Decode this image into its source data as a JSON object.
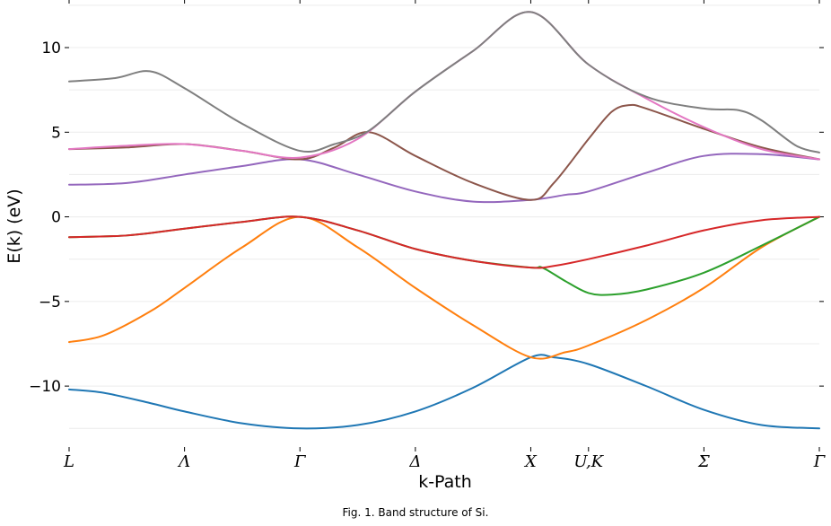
{
  "chart_data": {
    "type": "line",
    "xlabel": "k-Path",
    "ylabel": "E(k) (eV)",
    "ylim": [
      -13.6,
      12.6
    ],
    "grid": true,
    "xlim": [
      0,
      6.5
    ],
    "x_ticks": [
      {
        "pos": 0.0,
        "label": "L"
      },
      {
        "pos": 1.0,
        "label": "Λ"
      },
      {
        "pos": 2.0,
        "label": "Γ"
      },
      {
        "pos": 3.0,
        "label": "Δ"
      },
      {
        "pos": 4.0,
        "label": "X"
      },
      {
        "pos": 4.5,
        "label": "U,K"
      },
      {
        "pos": 5.5,
        "label": "Σ"
      },
      {
        "pos": 6.5,
        "label": "Γ"
      }
    ],
    "y_ticks": [
      {
        "value": 10,
        "label": "10"
      },
      {
        "value": 5,
        "label": "5"
      },
      {
        "value": 0,
        "label": "0"
      },
      {
        "value": -5,
        "label": "−5"
      },
      {
        "value": -10,
        "label": "−10"
      }
    ],
    "series": [
      {
        "color": "#1f77b4",
        "points": [
          [
            0,
            -10.2
          ],
          [
            0.3,
            -10.4
          ],
          [
            0.7,
            -11.0
          ],
          [
            1.0,
            -11.5
          ],
          [
            1.5,
            -12.2
          ],
          [
            2.0,
            -12.5
          ],
          [
            2.5,
            -12.3
          ],
          [
            3.0,
            -11.5
          ],
          [
            3.5,
            -10.1
          ],
          [
            4.0,
            -8.3
          ],
          [
            4.2,
            -8.3
          ],
          [
            4.5,
            -8.7
          ],
          [
            5.0,
            -10.0
          ],
          [
            5.5,
            -11.4
          ],
          [
            6.0,
            -12.3
          ],
          [
            6.5,
            -12.5
          ]
        ]
      },
      {
        "color": "#ff7f0e",
        "points": [
          [
            0,
            -7.4
          ],
          [
            0.3,
            -7.0
          ],
          [
            0.7,
            -5.6
          ],
          [
            1.0,
            -4.2
          ],
          [
            1.5,
            -1.8
          ],
          [
            2.0,
            0.0
          ],
          [
            2.5,
            -1.8
          ],
          [
            3.0,
            -4.2
          ],
          [
            3.5,
            -6.4
          ],
          [
            4.0,
            -8.3
          ],
          [
            4.3,
            -8.0
          ],
          [
            4.5,
            -7.6
          ],
          [
            5.0,
            -6.1
          ],
          [
            5.5,
            -4.2
          ],
          [
            6.0,
            -1.8
          ],
          [
            6.5,
            0.0
          ]
        ]
      },
      {
        "color": "#2ca02c",
        "points": [
          [
            0,
            -1.2
          ],
          [
            0.5,
            -1.1
          ],
          [
            1.0,
            -0.7
          ],
          [
            1.5,
            -0.3
          ],
          [
            2.0,
            0.0
          ],
          [
            2.5,
            -0.8
          ],
          [
            3.0,
            -1.9
          ],
          [
            3.5,
            -2.6
          ],
          [
            4.0,
            -3.0
          ],
          [
            4.1,
            -3.0
          ],
          [
            4.3,
            -3.8
          ],
          [
            4.5,
            -4.5
          ],
          [
            4.7,
            -4.6
          ],
          [
            5.0,
            -4.3
          ],
          [
            5.5,
            -3.3
          ],
          [
            6.0,
            -1.7
          ],
          [
            6.5,
            0.0
          ]
        ]
      },
      {
        "color": "#d62728",
        "points": [
          [
            0,
            -1.2
          ],
          [
            0.5,
            -1.1
          ],
          [
            1.0,
            -0.7
          ],
          [
            1.5,
            -0.3
          ],
          [
            2.0,
            0.0
          ],
          [
            2.5,
            -0.8
          ],
          [
            3.0,
            -1.9
          ],
          [
            3.5,
            -2.6
          ],
          [
            4.0,
            -3.0
          ],
          [
            4.2,
            -2.9
          ],
          [
            4.5,
            -2.5
          ],
          [
            5.0,
            -1.7
          ],
          [
            5.5,
            -0.8
          ],
          [
            6.0,
            -0.2
          ],
          [
            6.5,
            0.0
          ]
        ]
      },
      {
        "color": "#9467bd",
        "points": [
          [
            0,
            1.9
          ],
          [
            0.5,
            2.0
          ],
          [
            1.0,
            2.5
          ],
          [
            1.5,
            3.0
          ],
          [
            2.0,
            3.4
          ],
          [
            2.5,
            2.5
          ],
          [
            3.0,
            1.5
          ],
          [
            3.5,
            0.9
          ],
          [
            4.0,
            1.0
          ],
          [
            4.3,
            1.3
          ],
          [
            4.5,
            1.5
          ],
          [
            5.0,
            2.6
          ],
          [
            5.5,
            3.6
          ],
          [
            6.0,
            3.7
          ],
          [
            6.5,
            3.4
          ]
        ]
      },
      {
        "color": "#8c564b",
        "points": [
          [
            0,
            4.0
          ],
          [
            0.5,
            4.1
          ],
          [
            1.0,
            4.3
          ],
          [
            1.5,
            3.9
          ],
          [
            2.0,
            3.4
          ],
          [
            2.3,
            4.1
          ],
          [
            2.6,
            5.0
          ],
          [
            3.0,
            3.6
          ],
          [
            3.5,
            2.0
          ],
          [
            4.0,
            1.0
          ],
          [
            4.2,
            2.0
          ],
          [
            4.5,
            4.6
          ],
          [
            4.7,
            6.2
          ],
          [
            4.85,
            6.6
          ],
          [
            5.0,
            6.4
          ],
          [
            5.5,
            5.2
          ],
          [
            6.0,
            4.1
          ],
          [
            6.5,
            3.4
          ]
        ]
      },
      {
        "color": "#e377c2",
        "points": [
          [
            0,
            4.0
          ],
          [
            0.5,
            4.2
          ],
          [
            1.0,
            4.3
          ],
          [
            1.5,
            3.9
          ],
          [
            2.0,
            3.5
          ],
          [
            2.5,
            4.6
          ],
          [
            3.0,
            7.4
          ],
          [
            3.5,
            9.8
          ],
          [
            4.0,
            12.1
          ],
          [
            4.5,
            9.0
          ],
          [
            5.0,
            7.0
          ],
          [
            5.5,
            5.3
          ],
          [
            6.0,
            4.0
          ],
          [
            6.5,
            3.4
          ]
        ]
      },
      {
        "color": "#7f7f7f",
        "points": [
          [
            0,
            8.0
          ],
          [
            0.4,
            8.2
          ],
          [
            0.7,
            8.6
          ],
          [
            1.0,
            7.6
          ],
          [
            1.5,
            5.5
          ],
          [
            2.0,
            3.9
          ],
          [
            2.3,
            4.3
          ],
          [
            2.6,
            5.1
          ],
          [
            3.0,
            7.4
          ],
          [
            3.5,
            9.8
          ],
          [
            4.0,
            12.1
          ],
          [
            4.5,
            9.0
          ],
          [
            5.0,
            7.1
          ],
          [
            5.5,
            6.4
          ],
          [
            5.8,
            6.3
          ],
          [
            6.0,
            5.7
          ],
          [
            6.3,
            4.2
          ],
          [
            6.5,
            3.8
          ]
        ]
      }
    ]
  },
  "caption": "Fig. 1. Band structure of Si."
}
